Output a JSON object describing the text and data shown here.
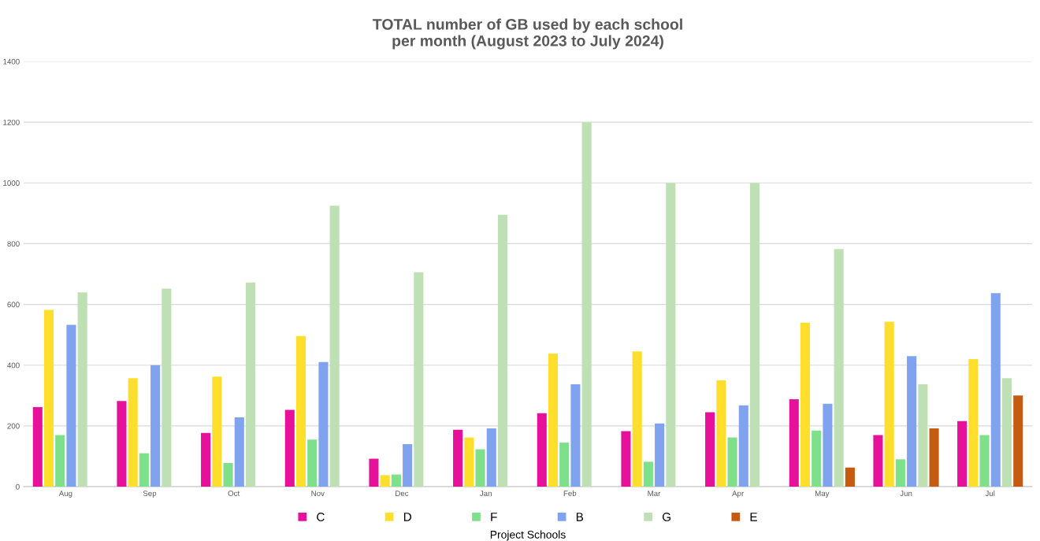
{
  "chart_data": {
    "type": "bar",
    "title": "TOTAL number of GB used by each school\nper month (August 2023 to July 2024)",
    "xlabel": "Project Schools",
    "categories": [
      "Aug",
      "Sep",
      "Oct",
      "Nov",
      "Dec",
      "Jan",
      "Feb",
      "Mar",
      "Apr",
      "May",
      "Jun",
      "Jul"
    ],
    "series": [
      {
        "name": "C",
        "color": "#e6109b",
        "values": [
          262,
          282,
          177,
          253,
          92,
          187,
          242,
          183,
          245,
          288,
          170,
          216
        ]
      },
      {
        "name": "D",
        "color": "#ffdf2b",
        "values": [
          582,
          357,
          362,
          496,
          38,
          162,
          438,
          445,
          350,
          540,
          543,
          420
        ]
      },
      {
        "name": "F",
        "color": "#7ee08a",
        "values": [
          170,
          110,
          78,
          155,
          40,
          123,
          145,
          82,
          162,
          185,
          90,
          170
        ]
      },
      {
        "name": "B",
        "color": "#7fa3ef",
        "values": [
          533,
          400,
          228,
          410,
          140,
          192,
          337,
          208,
          268,
          273,
          430,
          637
        ]
      },
      {
        "name": "G",
        "color": "#bfe0b4",
        "values": [
          640,
          652,
          672,
          925,
          706,
          895,
          1200,
          1000,
          1000,
          782,
          337,
          357
        ]
      },
      {
        "name": "E",
        "color": "#c55a11",
        "values": [
          null,
          null,
          null,
          null,
          null,
          null,
          null,
          null,
          null,
          63,
          192,
          300
        ]
      }
    ],
    "ylim": [
      0,
      1400
    ],
    "yticks": [
      0,
      200,
      400,
      600,
      800,
      1000,
      1200,
      1400
    ],
    "grid": "y",
    "legend": "bottom"
  }
}
